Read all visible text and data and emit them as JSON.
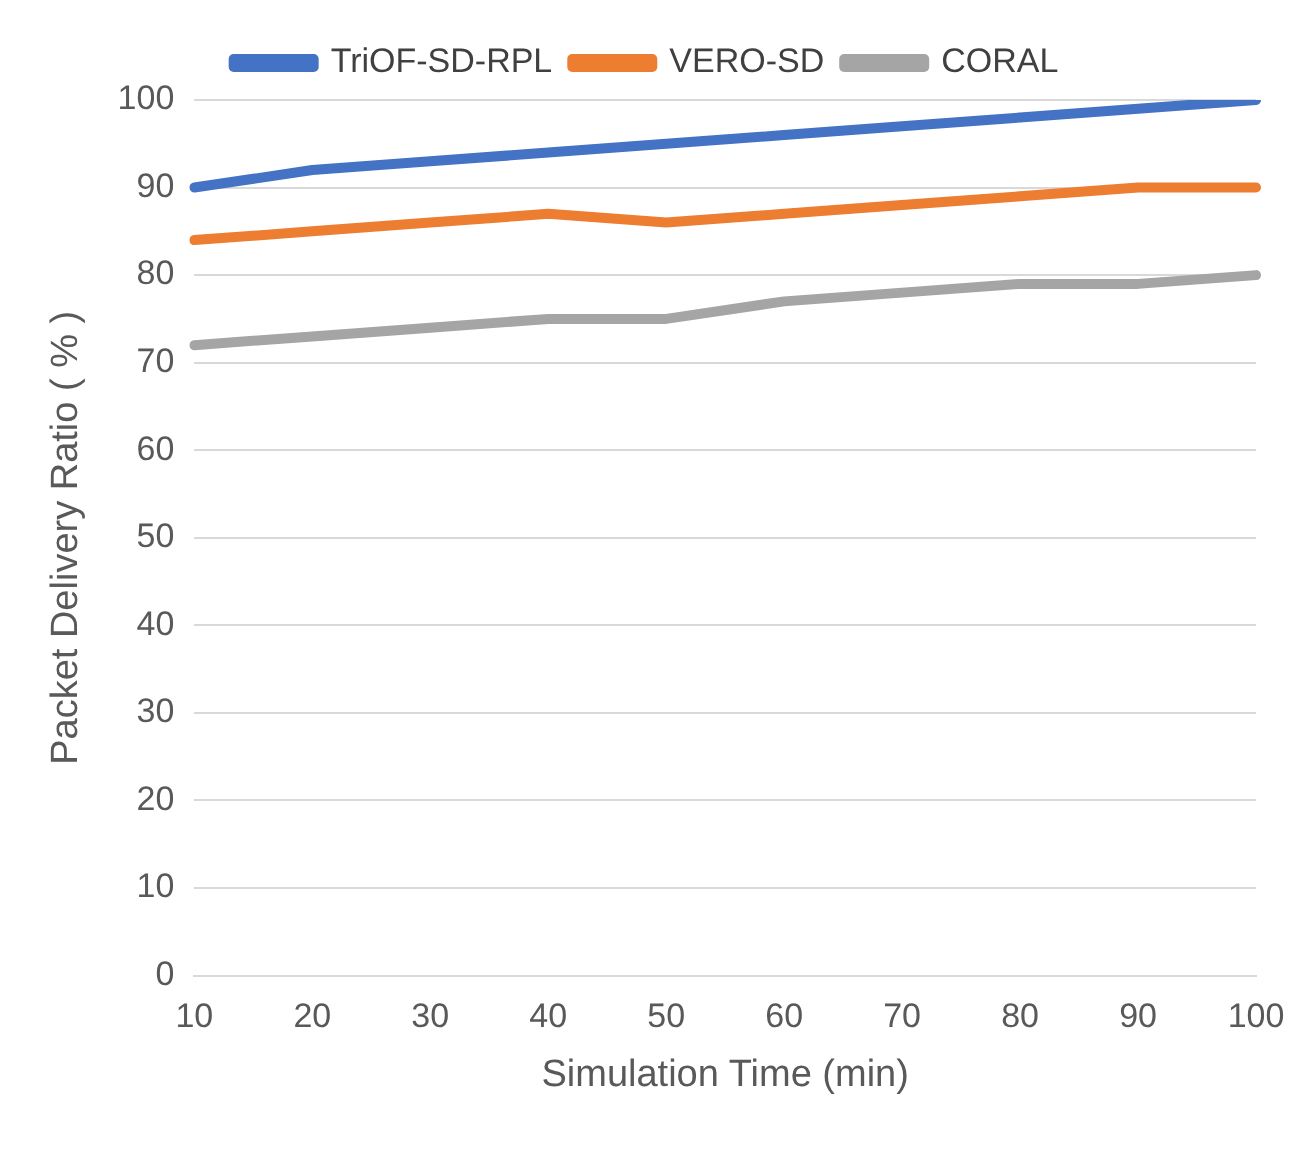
{
  "chart_data": {
    "type": "line",
    "xlabel": "Simulation Time (min)",
    "ylabel": "Packet Delivery Ratio ( % )",
    "categories": [
      "10",
      "20",
      "30",
      "40",
      "50",
      "60",
      "70",
      "80",
      "90",
      "100"
    ],
    "series": [
      {
        "name": "TriOF-SD-RPL",
        "color": "#4472c4",
        "values": [
          90,
          92,
          93,
          94,
          95,
          96,
          97,
          98,
          99,
          100
        ]
      },
      {
        "name": "VERO-SD",
        "color": "#ed7d31",
        "values": [
          84,
          85,
          86,
          87,
          86,
          87,
          88,
          89,
          90,
          90
        ]
      },
      {
        "name": "CORAL",
        "color": "#a5a5a5",
        "values": [
          72,
          73,
          74,
          75,
          75,
          77,
          78,
          79,
          79,
          80
        ]
      }
    ],
    "ylim": [
      0,
      100
    ],
    "yticks": [
      0,
      10,
      20,
      30,
      40,
      50,
      60,
      70,
      80,
      90,
      100
    ],
    "grid": "y",
    "legend": "top",
    "marker": "none",
    "line_style": "solid"
  }
}
